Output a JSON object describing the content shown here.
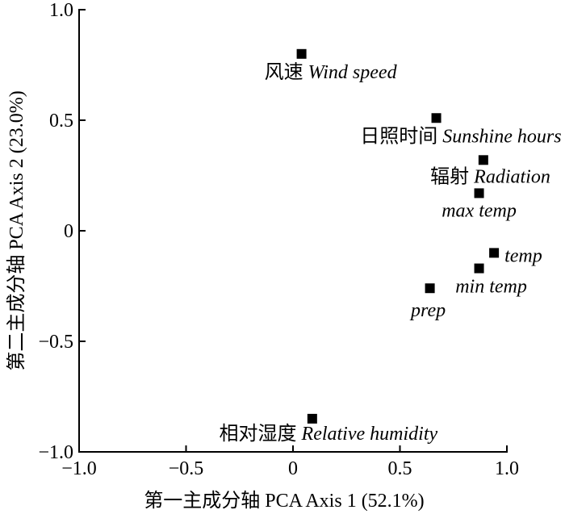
{
  "chart_data": {
    "type": "scatter",
    "xlabel": "第一主成分轴 PCA Axis 1 (52.1%)",
    "ylabel": "第二主成分轴 PCA Axis 2 (23.0%)",
    "xlim": [
      -1.0,
      1.0
    ],
    "ylim": [
      -1.0,
      1.0
    ],
    "x_ticks": [
      -1.0,
      -0.5,
      0,
      0.5,
      1.0
    ],
    "x_tick_labels": [
      "−1.0",
      "−0.5",
      "0",
      "0.5",
      "1.0"
    ],
    "y_ticks": [
      -1.0,
      -0.5,
      0,
      0.5,
      1.0
    ],
    "y_tick_labels": [
      "−1.0",
      "−0.5",
      "0",
      "0.5",
      "1.0"
    ],
    "grid": false,
    "legend": "none",
    "marker_color": "#000000",
    "axis_color": "#000000",
    "points": [
      {
        "label_zh": "风速",
        "label_en": "Wind speed",
        "x": 0.04,
        "y": 0.8
      },
      {
        "label_zh": "日照时间",
        "label_en": "Sunshine hours",
        "x": 0.67,
        "y": 0.51
      },
      {
        "label_zh": "辐射",
        "label_en": "Radiation",
        "x": 0.89,
        "y": 0.32
      },
      {
        "label_en": "max temp",
        "x": 0.87,
        "y": 0.17
      },
      {
        "label_en": "temp",
        "x": 0.94,
        "y": -0.1
      },
      {
        "label_en": "min temp",
        "x": 0.87,
        "y": -0.17
      },
      {
        "label_en": "prep",
        "x": 0.64,
        "y": -0.26
      },
      {
        "label_zh": "相对湿度",
        "label_en": "Relative humidity",
        "x": 0.09,
        "y": -0.85
      }
    ]
  }
}
